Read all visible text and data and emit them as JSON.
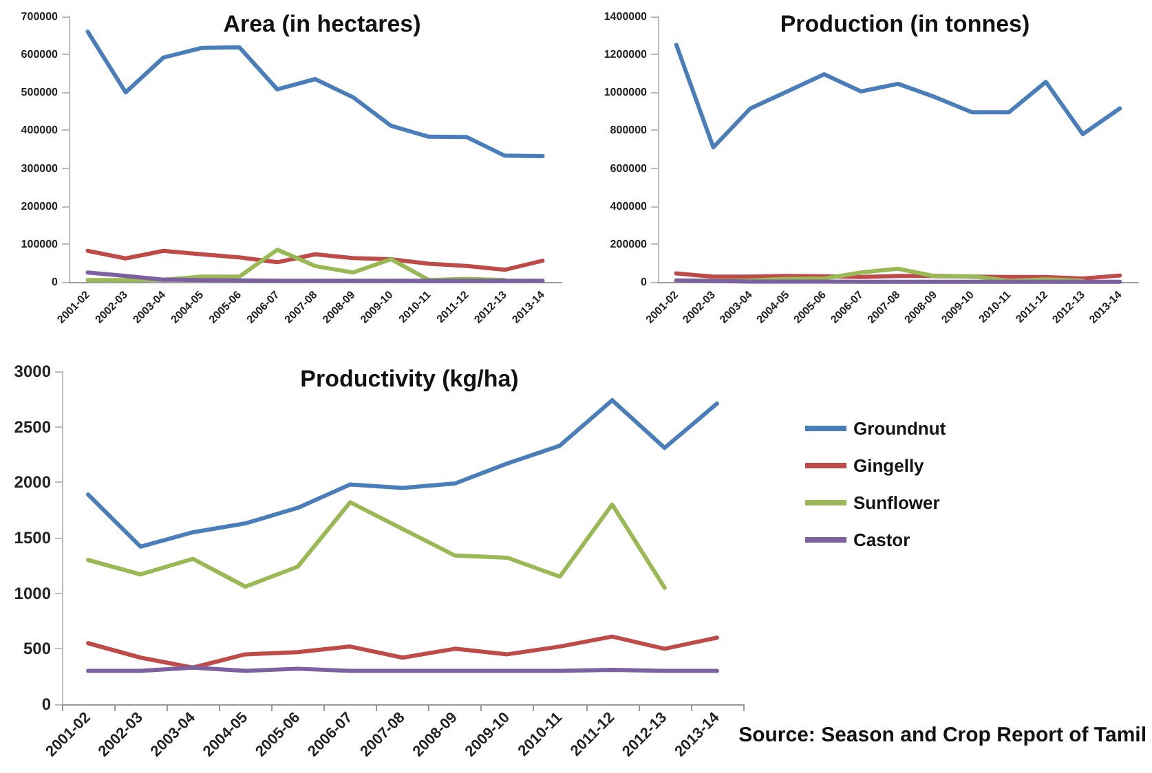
{
  "chart_data": [
    {
      "type": "line",
      "title": "Area (in hectares)",
      "categories": [
        "2001-02",
        "2002-03",
        "2003-04",
        "2004-05",
        "2005-06",
        "2006-07",
        "2007-08",
        "2008-09",
        "2009-10",
        "2010-11",
        "2011-12",
        "2012-13",
        "2013-14"
      ],
      "ylim": [
        0,
        700000
      ],
      "yticks": [
        0,
        100000,
        200000,
        300000,
        400000,
        500000,
        600000,
        700000
      ],
      "grid": false,
      "legend": false,
      "marker": "none",
      "line_style": "solid",
      "series": [
        {
          "color": "#4a7ebb",
          "values": [
            660000,
            500000,
            592000,
            617000,
            619000,
            508000,
            535000,
            487000,
            412000,
            383000,
            382000,
            333000,
            332000
          ]
        },
        {
          "color": "#be4b48",
          "values": [
            82000,
            62000,
            82000,
            73000,
            65000,
            52000,
            73000,
            63000,
            60000,
            48000,
            42000,
            32000,
            56000
          ]
        },
        {
          "color": "#98b954",
          "values": [
            5000,
            5000,
            6000,
            14000,
            14000,
            85000,
            42000,
            25000,
            60000,
            5000,
            8000,
            5000,
            null
          ]
        },
        {
          "color": "#7d60a0",
          "values": [
            25000,
            16000,
            6000,
            5000,
            4000,
            3000,
            3000,
            3000,
            3000,
            3000,
            3000,
            3000,
            3000
          ]
        }
      ]
    },
    {
      "type": "line",
      "title": "Production (in tonnes)",
      "categories": [
        "2001-02",
        "2002-03",
        "2003-04",
        "2004-05",
        "2005-06",
        "2006-07",
        "2007-08",
        "2008-09",
        "2009-10",
        "2010-11",
        "2011-12",
        "2012-13",
        "2013-14"
      ],
      "ylim": [
        0,
        1400000
      ],
      "yticks": [
        0,
        200000,
        400000,
        600000,
        800000,
        1000000,
        1200000,
        1400000
      ],
      "grid": false,
      "legend": false,
      "marker": "none",
      "line_style": "solid",
      "series": [
        {
          "color": "#4a7ebb",
          "values": [
            1250000,
            710000,
            915000,
            1005000,
            1095000,
            1005000,
            1045000,
            975000,
            895000,
            895000,
            1055000,
            780000,
            915000
          ]
        },
        {
          "color": "#be4b48",
          "values": [
            45000,
            28000,
            28000,
            32000,
            30000,
            26000,
            32000,
            32000,
            28000,
            26000,
            26000,
            18000,
            34000
          ]
        },
        {
          "color": "#98b954",
          "values": [
            6000,
            6000,
            8000,
            16000,
            18000,
            50000,
            70000,
            30000,
            30000,
            6000,
            14000,
            6000,
            null
          ]
        },
        {
          "color": "#7d60a0",
          "values": [
            8000,
            5000,
            2000,
            2000,
            2000,
            1000,
            1000,
            1000,
            1000,
            1000,
            1000,
            1000,
            1000
          ]
        }
      ]
    },
    {
      "type": "line",
      "title": "Productivity (kg/ha)",
      "categories": [
        "2001-02",
        "2002-03",
        "2003-04",
        "2004-05",
        "2005-06",
        "2006-07",
        "2007-08",
        "2008-09",
        "2009-10",
        "2010-11",
        "2011-12",
        "2012-13",
        "2013-14"
      ],
      "ylim": [
        0,
        3000
      ],
      "yticks": [
        0,
        500,
        1000,
        1500,
        2000,
        2500,
        3000
      ],
      "grid": false,
      "legend": "right",
      "marker": "none",
      "line_style": "solid",
      "annotations": [
        "Source: Season and Crop Report of Tamil"
      ],
      "series": [
        {
          "name": "Groundnut",
          "color": "#4a7ebb",
          "values": [
            1890,
            1420,
            1550,
            1630,
            1770,
            1980,
            1950,
            1990,
            2170,
            2330,
            2740,
            2310,
            2710
          ]
        },
        {
          "name": "Gingelly",
          "color": "#be4b48",
          "values": [
            550,
            420,
            330,
            450,
            470,
            520,
            420,
            500,
            450,
            520,
            610,
            500,
            600
          ]
        },
        {
          "name": "Sunflower",
          "color": "#98b954",
          "values": [
            1300,
            1170,
            1310,
            1060,
            1240,
            1820,
            1580,
            1340,
            1320,
            1150,
            1800,
            1050,
            null
          ]
        },
        {
          "name": "Castor",
          "color": "#7d60a0",
          "values": [
            300,
            300,
            330,
            300,
            320,
            300,
            300,
            300,
            300,
            300,
            310,
            300,
            300
          ]
        }
      ]
    }
  ]
}
